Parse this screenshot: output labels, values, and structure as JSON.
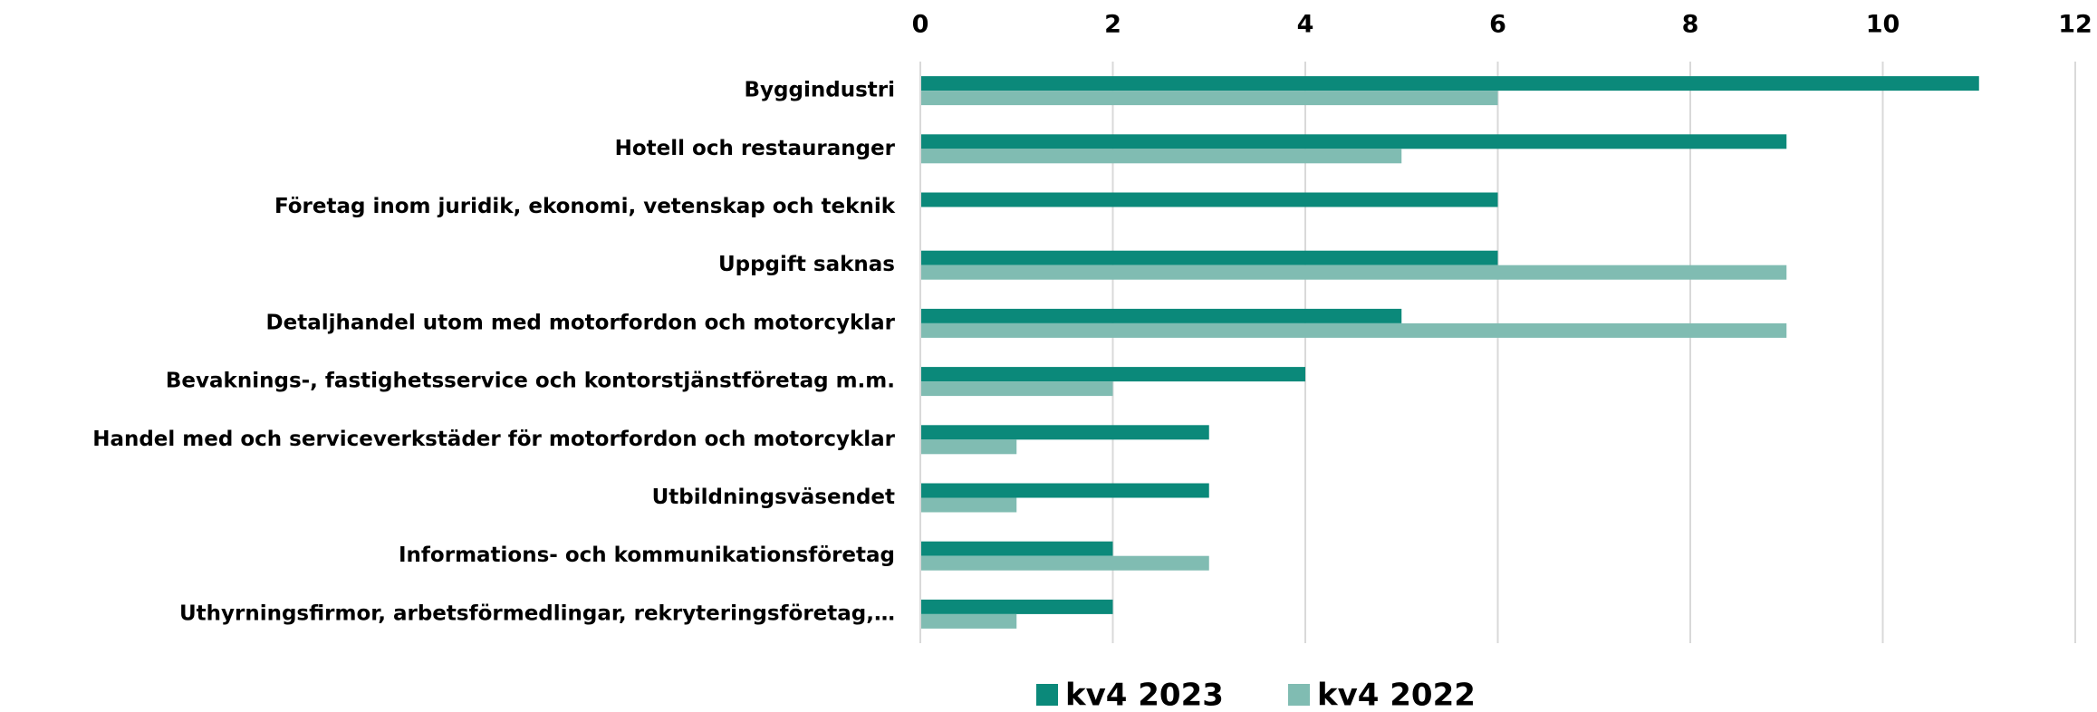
{
  "chart_data": {
    "type": "barh",
    "categories": [
      "Byggindustri",
      "Hotell och restauranger",
      "Företag inom juridik, ekonomi, vetenskap och teknik",
      "Uppgift saknas",
      "Detaljhandel utom med motorfordon och motorcyklar",
      "Bevaknings-, fastighetsservice och kontorstjänstföretag m.m.",
      "Handel med och serviceverkstäder för motorfordon och motorcyklar",
      "Utbildningsväsendet",
      "Informations- och kommunikationsföretag",
      "Uthyrningsfirmor, arbetsförmedlingar, rekryteringsföretag,…"
    ],
    "series": [
      {
        "name": "kv4 2023",
        "color": "#0b897a",
        "values": [
          11,
          9,
          6,
          6,
          5,
          4,
          3,
          3,
          2,
          2
        ]
      },
      {
        "name": "kv4 2022",
        "color": "#80bcb2",
        "values": [
          6,
          5,
          0,
          9,
          9,
          2,
          1,
          1,
          3,
          1
        ]
      }
    ],
    "xlim": [
      0,
      12
    ],
    "xticks": [
      0,
      2,
      4,
      6,
      8,
      10,
      12
    ],
    "grid": true,
    "legend": "bottom"
  }
}
